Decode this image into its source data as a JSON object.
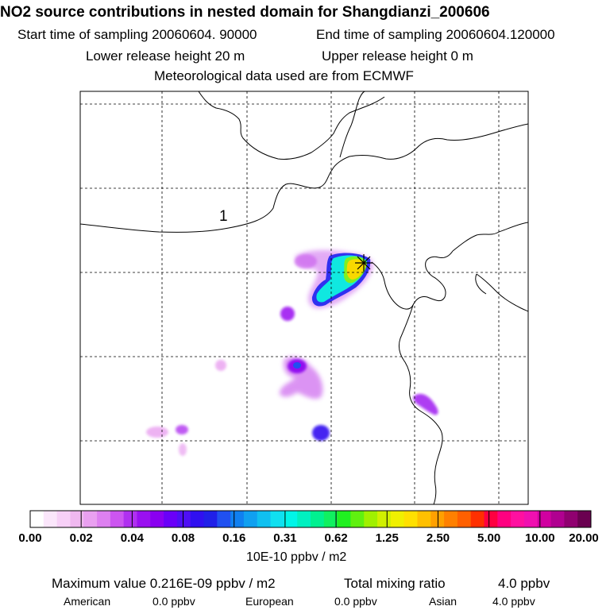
{
  "header": {
    "title": "NO2 source contributions in nested domain for Shangdianzi_200606",
    "start_time": "Start time of sampling 20060604. 90000",
    "end_time": "End time of sampling 20060604.120000",
    "lower_height": "Lower release height   20 m",
    "upper_height": "Upper release height    0 m",
    "met_data": "Meteorological data used are from ECMWF"
  },
  "map": {
    "contour_label": "1",
    "station_marker": "star-marker"
  },
  "colorbar": {
    "tick_labels": [
      "0.00",
      "0.02",
      "0.04",
      "0.08",
      "0.16",
      "0.31",
      "0.62",
      "1.25",
      "2.50",
      "5.00",
      "10.00",
      "20.00"
    ],
    "unit": "10E-10 ppbv / m2",
    "colors": [
      "#ffffff",
      "#fbe6fb",
      "#f7d0f7",
      "#f0b8f0",
      "#e9a0f0",
      "#dd80f0",
      "#cc55f0",
      "#b030f0",
      "#9a10f0",
      "#8a00f0",
      "#6a00f8",
      "#4f0ff5",
      "#3010f0",
      "#2020e8",
      "#2050f0",
      "#1080f0",
      "#10a0f0",
      "#10c0f0",
      "#10e0f0",
      "#00f5e8",
      "#00f0c0",
      "#00f090",
      "#10f060",
      "#20f020",
      "#60f010",
      "#a0f000",
      "#d0f000",
      "#f0f000",
      "#ffe000",
      "#ffc000",
      "#ffa000",
      "#ff8000",
      "#ff6000",
      "#ff3000",
      "#ff0040",
      "#ff0080",
      "#ff10a0",
      "#f010b0",
      "#d000a0",
      "#b00090",
      "#900070",
      "#6a0050"
    ]
  },
  "footer": {
    "max_value": "Maximum value  0.216E-09 ppbv / m2",
    "total_label": "Total mixing ratio",
    "total_value": "4.0 ppbv",
    "american_label": "American",
    "american_value": "0.0 ppbv",
    "european_label": "European",
    "european_value": "0.0 ppbv",
    "asian_label": "Asian",
    "asian_value": "4.0 ppbv"
  }
}
